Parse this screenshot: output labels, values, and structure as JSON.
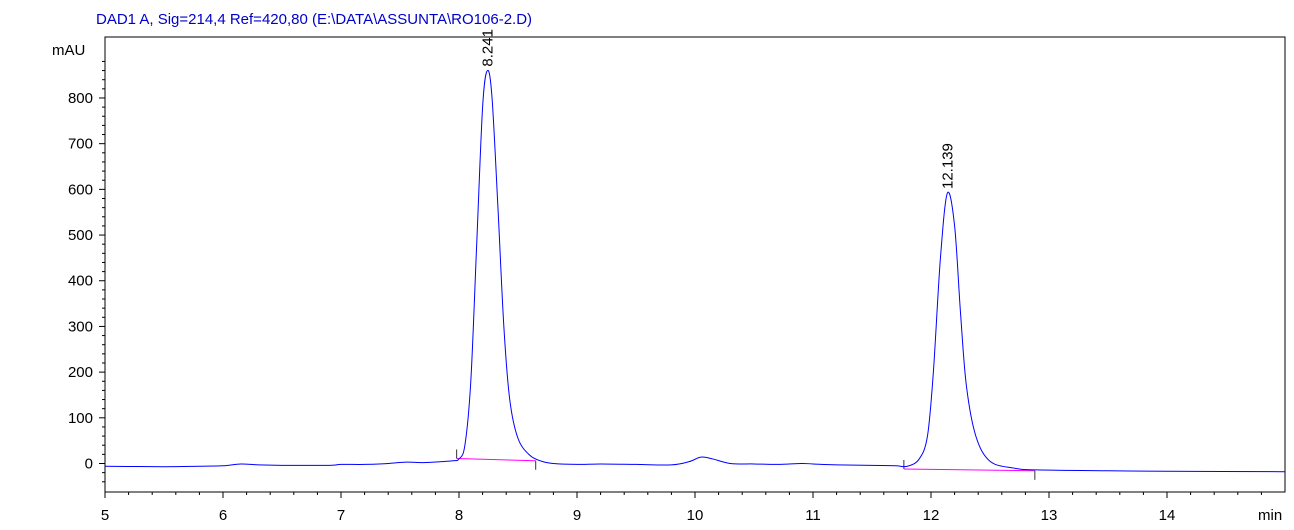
{
  "chart_data": {
    "type": "line",
    "title": "DAD1 A, Sig=214,4 Ref=420,80 (E:\\DATA\\ASSUNTA\\RO106-2.D)",
    "xlabel": "min",
    "ylabel": "mAU",
    "xlim": [
      5,
      15
    ],
    "ylim": [
      -60,
      920
    ],
    "x_ticks": [
      5,
      6,
      7,
      8,
      9,
      10,
      11,
      12,
      13,
      14
    ],
    "x_tick_labels": [
      "5",
      "6",
      "7",
      "8",
      "9",
      "10",
      "11",
      "12",
      "13",
      "14"
    ],
    "y_ticks": [
      0,
      100,
      200,
      300,
      400,
      500,
      600,
      700,
      800
    ],
    "y_tick_labels": [
      "0",
      "100",
      "200",
      "300",
      "400",
      "500",
      "600",
      "700",
      "800"
    ],
    "colors": {
      "signal": "#0000ff",
      "baseline": "#ff00ff",
      "title": "#0000cc",
      "axes": "#000000"
    },
    "peaks": [
      {
        "rt": 8.241,
        "label": "8.241",
        "height": 860,
        "baseline_start": [
          7.98,
          11
        ],
        "baseline_end": [
          8.65,
          6
        ]
      },
      {
        "rt": 12.139,
        "label": "12.139",
        "height": 592,
        "baseline_start": [
          11.77,
          -12
        ],
        "baseline_end": [
          12.88,
          -16
        ]
      }
    ],
    "series": [
      {
        "points": [
          [
            5.0,
            -6
          ],
          [
            5.5,
            -7
          ],
          [
            5.8,
            -6
          ],
          [
            6.0,
            -5
          ],
          [
            6.15,
            -1
          ],
          [
            6.3,
            -3
          ],
          [
            6.5,
            -4
          ],
          [
            6.9,
            -4
          ],
          [
            7.0,
            -2
          ],
          [
            7.2,
            -2
          ],
          [
            7.4,
            0
          ],
          [
            7.55,
            3
          ],
          [
            7.7,
            2
          ],
          [
            7.85,
            4
          ],
          [
            7.95,
            6
          ],
          [
            8.0,
            10
          ],
          [
            8.05,
            40
          ],
          [
            8.1,
            180
          ],
          [
            8.15,
            480
          ],
          [
            8.2,
            780
          ],
          [
            8.241,
            860
          ],
          [
            8.28,
            800
          ],
          [
            8.33,
            560
          ],
          [
            8.38,
            300
          ],
          [
            8.43,
            140
          ],
          [
            8.5,
            55
          ],
          [
            8.6,
            18
          ],
          [
            8.7,
            5
          ],
          [
            8.8,
            0
          ],
          [
            9.0,
            -2
          ],
          [
            9.2,
            -1
          ],
          [
            9.5,
            -2
          ],
          [
            9.8,
            -3
          ],
          [
            9.95,
            4
          ],
          [
            10.05,
            14
          ],
          [
            10.15,
            10
          ],
          [
            10.3,
            0
          ],
          [
            10.5,
            -1
          ],
          [
            10.7,
            -2
          ],
          [
            10.9,
            0
          ],
          [
            11.0,
            -1
          ],
          [
            11.2,
            -3
          ],
          [
            11.5,
            -4
          ],
          [
            11.7,
            -5
          ],
          [
            11.8,
            -6
          ],
          [
            11.9,
            10
          ],
          [
            11.97,
            60
          ],
          [
            12.02,
            200
          ],
          [
            12.08,
            450
          ],
          [
            12.139,
            592
          ],
          [
            12.2,
            520
          ],
          [
            12.25,
            330
          ],
          [
            12.3,
            170
          ],
          [
            12.38,
            60
          ],
          [
            12.5,
            5
          ],
          [
            12.7,
            -10
          ],
          [
            12.9,
            -14
          ],
          [
            13.5,
            -16
          ],
          [
            14.0,
            -17
          ],
          [
            15.0,
            -18
          ]
        ]
      }
    ]
  }
}
